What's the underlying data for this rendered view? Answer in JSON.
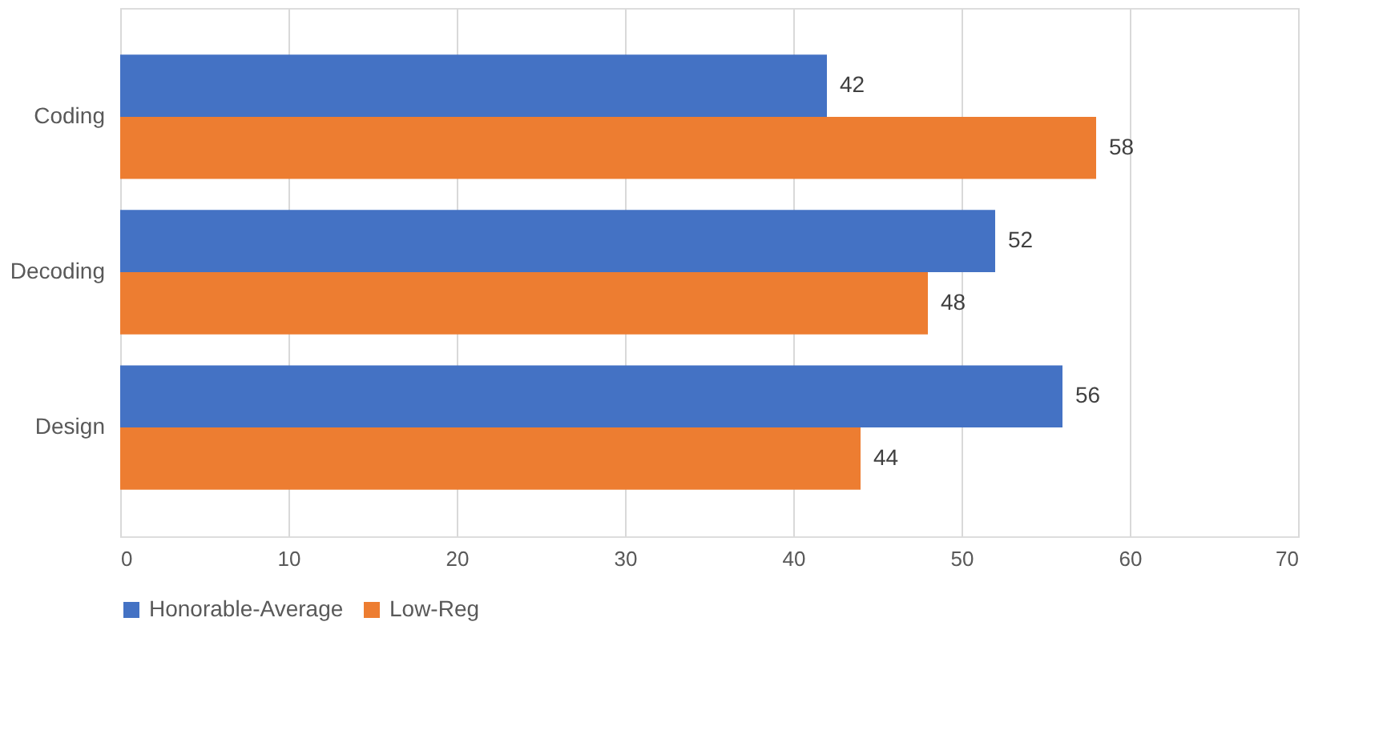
{
  "chart_data": {
    "type": "bar",
    "orientation": "horizontal",
    "categories": [
      "Coding",
      "Decoding",
      "Design"
    ],
    "series": [
      {
        "name": "Honorable-Average",
        "color": "#4472c4",
        "values": [
          42,
          52,
          56
        ]
      },
      {
        "name": "Low-Reg",
        "color": "#ed7d31",
        "values": [
          58,
          48,
          44
        ]
      }
    ],
    "xlim": [
      0,
      70
    ],
    "xticks": [
      0,
      10,
      20,
      30,
      40,
      50,
      60,
      70
    ],
    "grid": "x",
    "legend": "bottom",
    "data_labels": true
  }
}
